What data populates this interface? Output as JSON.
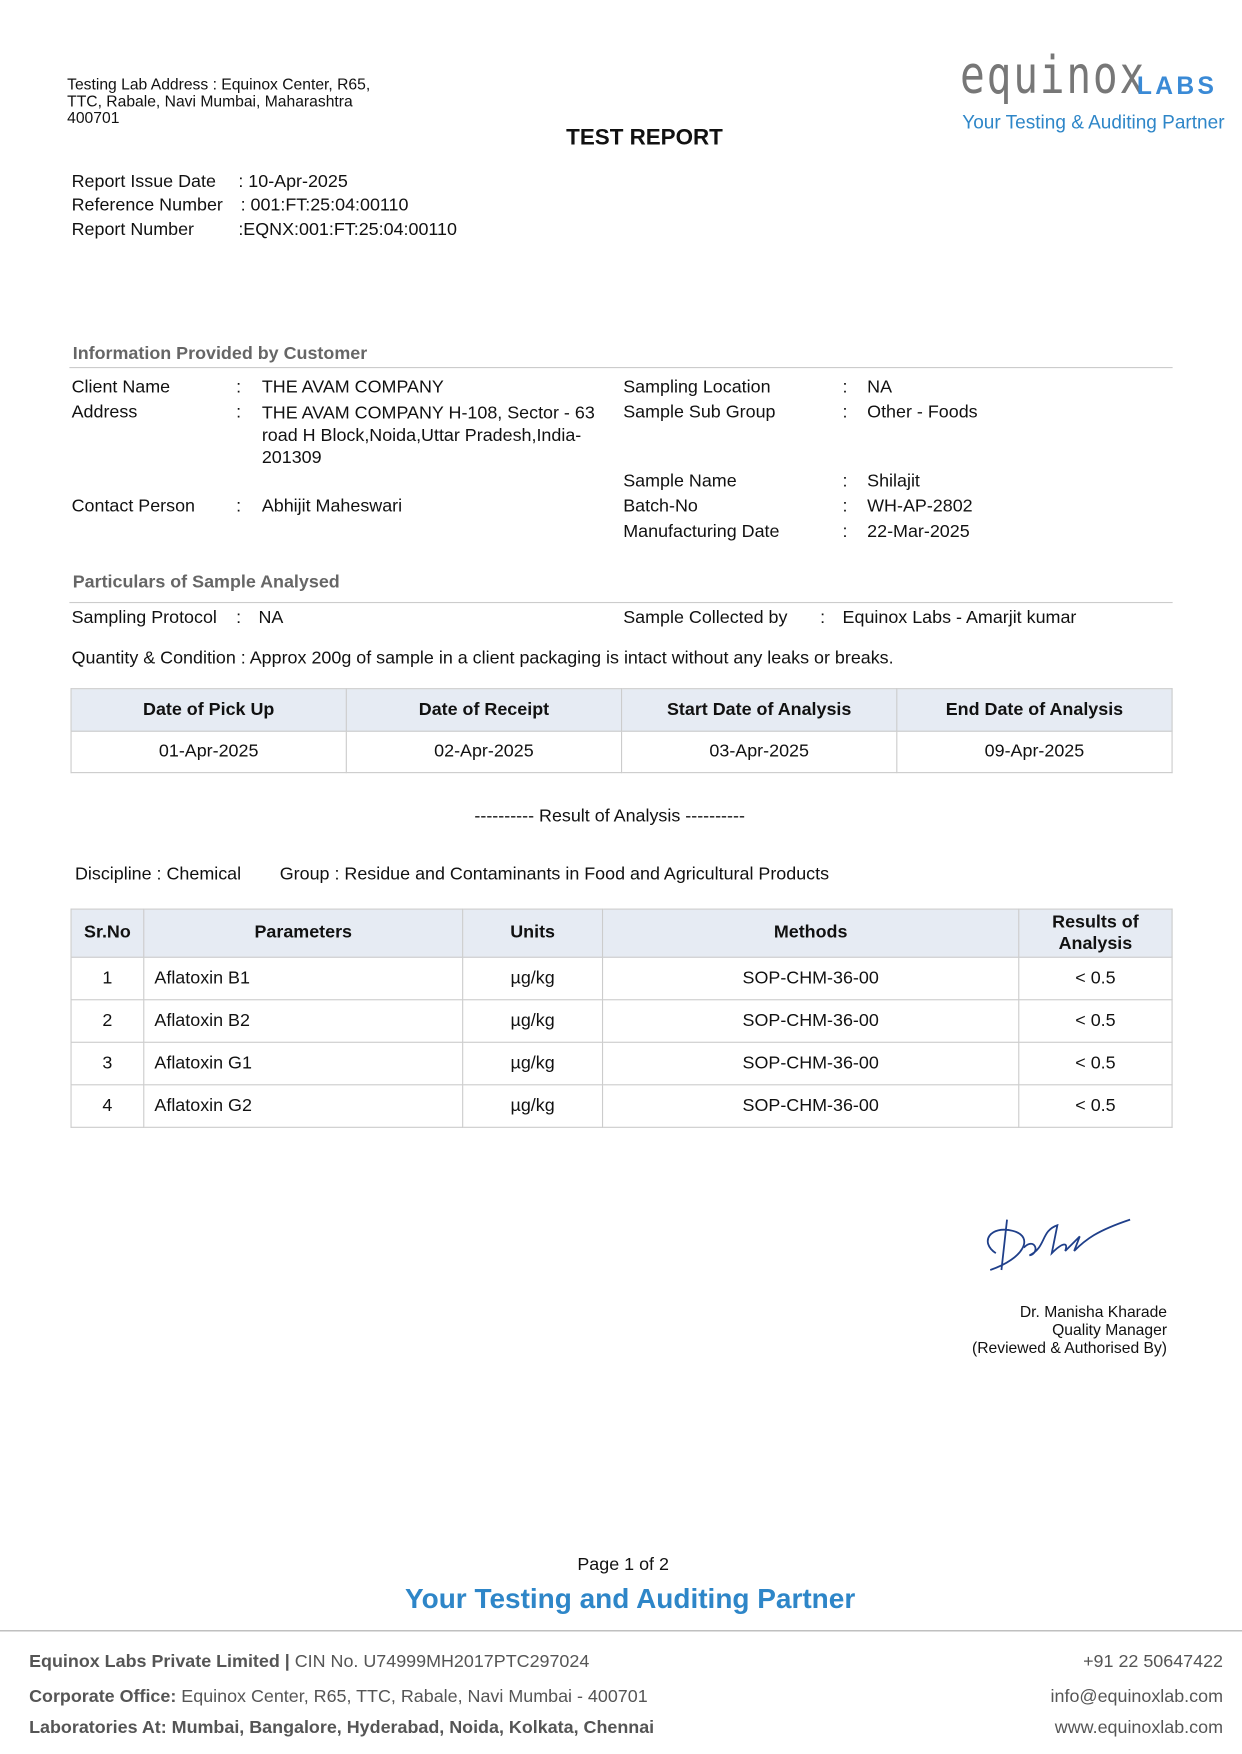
{
  "header": {
    "lab_address": [
      "Testing Lab Address : Equinox Center, R65,",
      "TTC, Rabale, Navi Mumbai, Maharashtra",
      "400701"
    ],
    "title": "TEST REPORT",
    "logo": {
      "name": "equinox",
      "labs": "LABS",
      "tagline": "Your Testing & Auditing Partner"
    }
  },
  "report": {
    "issue_date_label": "Report Issue Date",
    "issue_date": ": 10-Apr-2025",
    "ref_label": "Reference Number",
    "ref": ": 001:FT:25:04:00110",
    "num_label": "Report Number",
    "num": ":EQNX:001:FT:25:04:00110"
  },
  "customer": {
    "section": "Information Provided by Customer",
    "client_label": "Client Name",
    "client": "THE AVAM COMPANY",
    "address_label": "Address",
    "address": [
      "THE AVAM COMPANY H-108, Sector - 63",
      "road H Block,Noida,Uttar Pradesh,India-",
      "201309"
    ],
    "contact_label": "Contact Person",
    "contact": "Abhijit Maheswari",
    "sampling_location_label": "Sampling Location",
    "sampling_location": "NA",
    "sub_group_label": "Sample Sub Group",
    "sub_group": "Other - Foods",
    "sample_name_label": "Sample Name",
    "sample_name": "Shilajit",
    "batch_label": "Batch-No",
    "batch": "WH-AP-2802",
    "mfg_label": "Manufacturing Date",
    "mfg": "22-Mar-2025",
    "colon": ":"
  },
  "particulars": {
    "section": "Particulars of Sample Analysed",
    "protocol_label": "Sampling Protocol",
    "protocol": "NA",
    "collected_label": "Sample Collected by",
    "collected": "Equinox Labs - Amarjit kumar",
    "quantity": "Quantity & Condition : Approx 200g of sample in a client packaging is intact without any leaks or breaks.",
    "dates_headers": [
      "Date of Pick Up",
      "Date of Receipt",
      "Start Date of Analysis",
      "End Date of Analysis"
    ],
    "dates": [
      "01-Apr-2025",
      "02-Apr-2025",
      "03-Apr-2025",
      "09-Apr-2025"
    ]
  },
  "results": {
    "heading": "----------  Result of Analysis  ----------",
    "discipline": "Discipline : Chemical",
    "group": "Group : Residue and Contaminants in Food and Agricultural Products",
    "headers": [
      "Sr.No",
      "Parameters",
      "Units",
      "Methods",
      "Results of Analysis"
    ],
    "rows": [
      [
        "1",
        "Aflatoxin B1",
        "µg/kg",
        "SOP-CHM-36-00",
        "< 0.5"
      ],
      [
        "2",
        "Aflatoxin B2",
        "µg/kg",
        "SOP-CHM-36-00",
        "< 0.5"
      ],
      [
        "3",
        "Aflatoxin G1",
        "µg/kg",
        "SOP-CHM-36-00",
        "< 0.5"
      ],
      [
        "4",
        "Aflatoxin G2",
        "µg/kg",
        "SOP-CHM-36-00",
        "< 0.5"
      ]
    ]
  },
  "signatory": {
    "name": "Dr. Manisha Kharade",
    "role": "Quality Manager",
    "note": "(Reviewed & Authorised By)"
  },
  "footer": {
    "page": "Page 1 of 2",
    "tagline": "Your Testing and Auditing Partner",
    "company": "Equinox Labs Private Limited |",
    "cin": " CIN No. U74999MH2017PTC297024",
    "office_label": "Corporate Office:",
    "office": " Equinox Center, R65, TTC, Rabale, Navi Mumbai - 400701",
    "labs": "Laboratories At: Mumbai, Bangalore, Hyderabad, Noida, Kolkata, Chennai",
    "phone": "+91 22 50647422",
    "email": "info@equinoxlab.com",
    "web": "www.equinoxlab.com"
  }
}
